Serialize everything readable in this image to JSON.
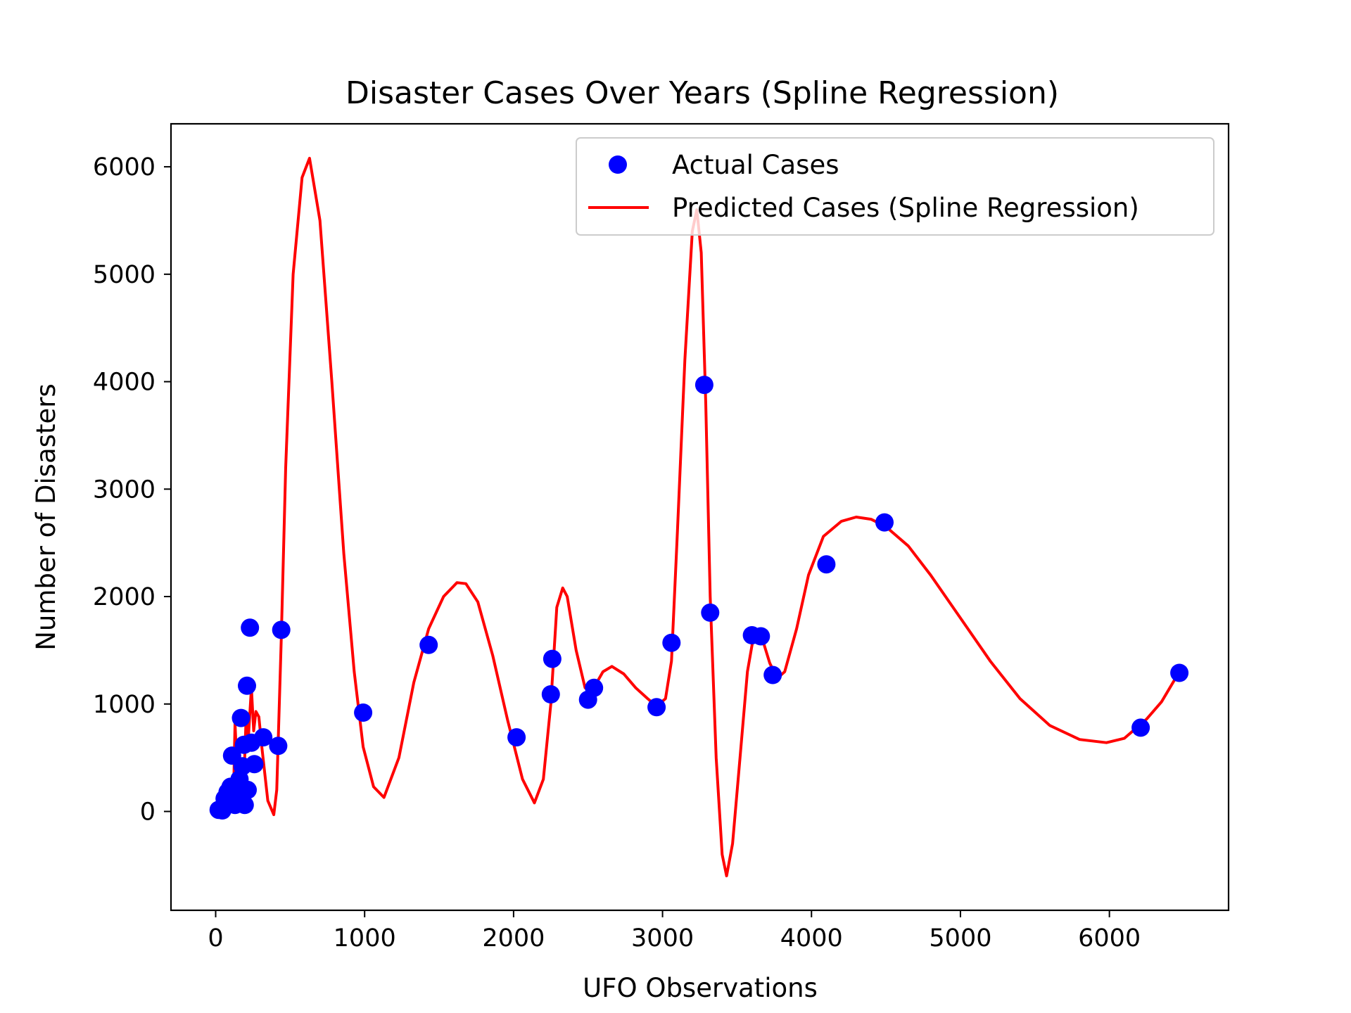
{
  "chart_data": {
    "type": "scatter",
    "title": "Disaster Cases Over Years (Spline Regression)",
    "xlabel": "UFO Observations",
    "ylabel": "Number of Disasters",
    "xlim": [
      -300,
      6800
    ],
    "ylim": [
      -920,
      6400
    ],
    "xticks": [
      0,
      1000,
      2000,
      3000,
      4000,
      5000,
      6000
    ],
    "yticks": [
      0,
      1000,
      2000,
      3000,
      4000,
      5000,
      6000
    ],
    "xtick_labels": [
      "0",
      "1000",
      "2000",
      "3000",
      "4000",
      "5000",
      "6000"
    ],
    "ytick_labels": [
      "0",
      "1000",
      "2000",
      "3000",
      "4000",
      "5000",
      "6000"
    ],
    "grid": false,
    "legend_position": "upper right",
    "series": [
      {
        "name": "Actual Cases",
        "kind": "scatter",
        "color": "#0000ff",
        "points": [
          [
            20,
            15
          ],
          [
            45,
            10
          ],
          [
            60,
            120
          ],
          [
            80,
            180
          ],
          [
            100,
            230
          ],
          [
            110,
            520
          ],
          [
            130,
            60
          ],
          [
            150,
            150
          ],
          [
            160,
            300
          ],
          [
            170,
            870
          ],
          [
            180,
            420
          ],
          [
            190,
            620
          ],
          [
            195,
            60
          ],
          [
            210,
            1170
          ],
          [
            215,
            200
          ],
          [
            230,
            1710
          ],
          [
            240,
            640
          ],
          [
            260,
            440
          ],
          [
            320,
            690
          ],
          [
            420,
            610
          ],
          [
            440,
            1690
          ],
          [
            990,
            920
          ],
          [
            1430,
            1550
          ],
          [
            2020,
            690
          ],
          [
            2250,
            1090
          ],
          [
            2260,
            1420
          ],
          [
            2500,
            1040
          ],
          [
            2540,
            1150
          ],
          [
            2960,
            970
          ],
          [
            3060,
            1570
          ],
          [
            3280,
            3970
          ],
          [
            3320,
            1850
          ],
          [
            3600,
            1640
          ],
          [
            3660,
            1630
          ],
          [
            3740,
            1270
          ],
          [
            4100,
            2300
          ],
          [
            4490,
            2690
          ],
          [
            6210,
            780
          ],
          [
            6470,
            1290
          ]
        ]
      },
      {
        "name": "Predicted Cases (Spline Regression)",
        "kind": "line",
        "color": "#ff0000",
        "points": [
          [
            20,
            30
          ],
          [
            60,
            30
          ],
          [
            100,
            200
          ],
          [
            120,
            150
          ],
          [
            130,
            820
          ],
          [
            150,
            200
          ],
          [
            170,
            80
          ],
          [
            190,
            300
          ],
          [
            205,
            900
          ],
          [
            220,
            700
          ],
          [
            240,
            1150
          ],
          [
            255,
            750
          ],
          [
            270,
            930
          ],
          [
            290,
            880
          ],
          [
            310,
            600
          ],
          [
            350,
            100
          ],
          [
            390,
            -30
          ],
          [
            410,
            200
          ],
          [
            440,
            1600
          ],
          [
            470,
            3200
          ],
          [
            520,
            5000
          ],
          [
            580,
            5900
          ],
          [
            630,
            6080
          ],
          [
            700,
            5500
          ],
          [
            780,
            4000
          ],
          [
            860,
            2400
          ],
          [
            930,
            1300
          ],
          [
            990,
            600
          ],
          [
            1060,
            230
          ],
          [
            1130,
            130
          ],
          [
            1230,
            500
          ],
          [
            1330,
            1200
          ],
          [
            1430,
            1700
          ],
          [
            1530,
            2000
          ],
          [
            1620,
            2130
          ],
          [
            1680,
            2120
          ],
          [
            1760,
            1950
          ],
          [
            1860,
            1450
          ],
          [
            1960,
            850
          ],
          [
            2060,
            300
          ],
          [
            2140,
            80
          ],
          [
            2200,
            300
          ],
          [
            2250,
            1000
          ],
          [
            2290,
            1900
          ],
          [
            2330,
            2080
          ],
          [
            2360,
            2000
          ],
          [
            2420,
            1500
          ],
          [
            2480,
            1150
          ],
          [
            2530,
            1130
          ],
          [
            2600,
            1300
          ],
          [
            2660,
            1350
          ],
          [
            2740,
            1280
          ],
          [
            2820,
            1150
          ],
          [
            2900,
            1050
          ],
          [
            2960,
            980
          ],
          [
            3020,
            1050
          ],
          [
            3060,
            1400
          ],
          [
            3100,
            2600
          ],
          [
            3150,
            4200
          ],
          [
            3200,
            5400
          ],
          [
            3230,
            5600
          ],
          [
            3260,
            5200
          ],
          [
            3290,
            3800
          ],
          [
            3320,
            2000
          ],
          [
            3360,
            500
          ],
          [
            3400,
            -400
          ],
          [
            3430,
            -600
          ],
          [
            3470,
            -300
          ],
          [
            3520,
            500
          ],
          [
            3570,
            1300
          ],
          [
            3620,
            1700
          ],
          [
            3660,
            1650
          ],
          [
            3720,
            1380
          ],
          [
            3770,
            1240
          ],
          [
            3820,
            1300
          ],
          [
            3900,
            1700
          ],
          [
            3980,
            2200
          ],
          [
            4080,
            2560
          ],
          [
            4200,
            2700
          ],
          [
            4300,
            2740
          ],
          [
            4400,
            2720
          ],
          [
            4500,
            2650
          ],
          [
            4650,
            2470
          ],
          [
            4800,
            2200
          ],
          [
            5000,
            1800
          ],
          [
            5200,
            1400
          ],
          [
            5400,
            1050
          ],
          [
            5600,
            800
          ],
          [
            5800,
            670
          ],
          [
            5980,
            640
          ],
          [
            6100,
            680
          ],
          [
            6250,
            860
          ],
          [
            6350,
            1020
          ],
          [
            6470,
            1300
          ]
        ]
      }
    ]
  }
}
